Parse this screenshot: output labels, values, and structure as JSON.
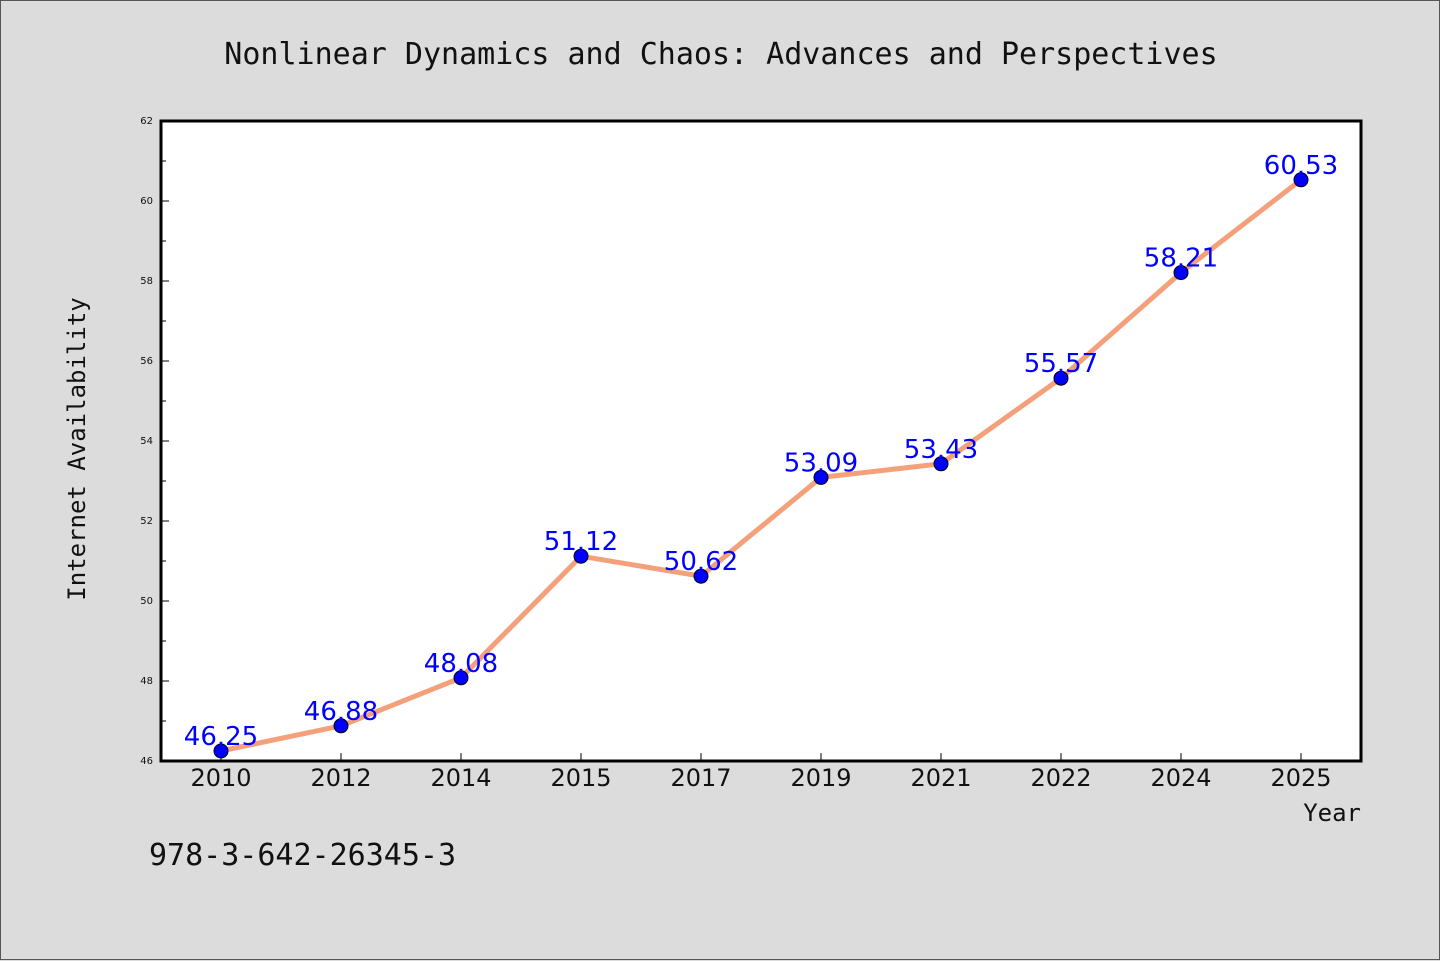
{
  "chart_data": {
    "type": "line",
    "title": "Nonlinear Dynamics and Chaos: Advances and Perspectives",
    "xlabel": "Year",
    "ylabel": "Internet Availability",
    "categories": [
      "2010",
      "2012",
      "2014",
      "2015",
      "2017",
      "2019",
      "2021",
      "2022",
      "2024",
      "2025"
    ],
    "series": [
      {
        "values": [
          46.25,
          46.88,
          48.08,
          51.12,
          50.62,
          53.09,
          53.43,
          55.57,
          58.21,
          60.53
        ],
        "labels": [
          "46.25",
          "46.88",
          "48.08",
          "51.12",
          "50.62",
          "53.09",
          "53.43",
          "55.57",
          "58.21",
          "60.53"
        ],
        "line_color": "#f4a07a",
        "marker_color": "#0000ff"
      }
    ],
    "ylim": [
      46,
      62
    ],
    "yticks": [
      "46",
      "48",
      "50",
      "52",
      "54",
      "56",
      "58",
      "60",
      "62"
    ],
    "grid": false,
    "legend": "none"
  },
  "footer": {
    "isbn": "978-3-642-26345-3"
  },
  "colors": {
    "background": "#dcdcdc",
    "plot_background": "#ffffff",
    "axis": "#000000",
    "data_label": "#0000ff"
  }
}
